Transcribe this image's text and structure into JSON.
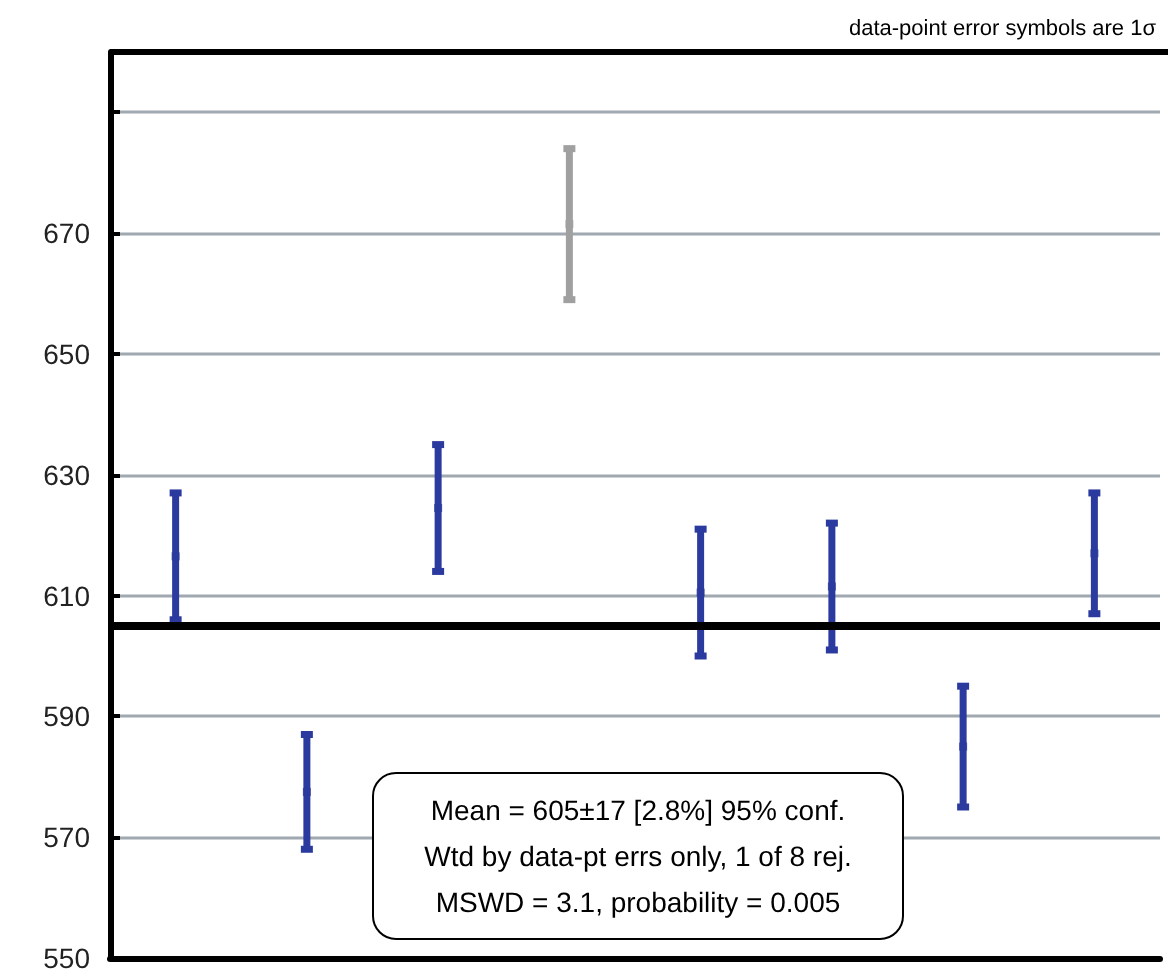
{
  "chart_data": {
    "type": "scatter",
    "marker": "square",
    "categories": [
      null,
      null,
      null,
      null,
      null,
      null,
      null,
      null
    ],
    "values": [
      616.5,
      577.5,
      624.5,
      671.5,
      610.5,
      611.5,
      585,
      617
    ],
    "errors": [
      10.5,
      9.5,
      10.5,
      12.5,
      10.5,
      10.5,
      10,
      10
    ],
    "colors": [
      "#2b3a9e",
      "#2b3a9e",
      "#2b3a9e",
      "#a0a0a0",
      "#2b3a9e",
      "#2b3a9e",
      "#2b3a9e",
      "#2b3a9e"
    ],
    "ylim": [
      550,
      700
    ],
    "yticks": [
      550,
      570,
      590,
      610,
      630,
      650,
      670,
      {
        "value": 690,
        "label": null
      }
    ],
    "grid": "y",
    "tick_labels": "y",
    "ref_lines": [
      {
        "axis": "y",
        "value": 605,
        "color": "#000000"
      }
    ],
    "annotations": [
      "data-point error symbols are 1σ",
      "Mean = 605±17   [2.8%]  95% conf.",
      "Wtd by data-pt errs only, 1 of 8 rej.",
      "MSWD = 3.1, probability = 0.005"
    ]
  }
}
